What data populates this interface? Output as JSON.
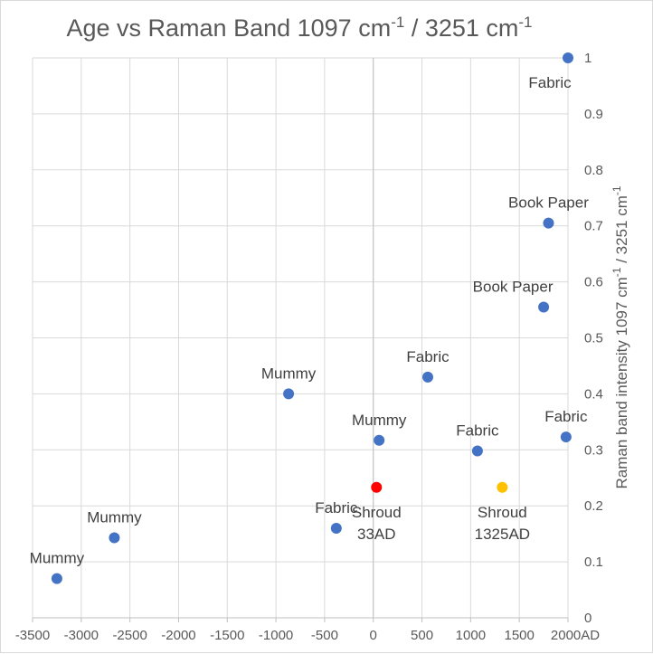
{
  "chart_data": {
    "type": "scatter",
    "title": {
      "main": "Age vs Raman Band 1097 cm",
      "sup1": "-1",
      "mid": " / 3251 cm",
      "sup2": "-1"
    },
    "xlabel": "",
    "ylabel": {
      "main": "Raman band intensity 1097 cm",
      "sup1": "-1",
      "mid": " / 3251 cm",
      "sup2": "-1"
    },
    "xlim": [
      -3500,
      2000
    ],
    "ylim": [
      0,
      1
    ],
    "x_ticks": [
      "-3500",
      "-3000",
      "-2500",
      "-2000",
      "-1500",
      "-1000",
      "-500",
      "0",
      "500",
      "1000",
      "1500",
      "2000AD"
    ],
    "y_ticks": [
      "0",
      "0.1",
      "0.2",
      "0.3",
      "0.4",
      "0.5",
      "0.6",
      "0.7",
      "0.8",
      "0.9",
      "1"
    ],
    "grid": true,
    "colors": {
      "default": "#4472c4",
      "shroud_33": "#ff0000",
      "shroud_1325": "#ffc000"
    },
    "points": [
      {
        "x": 2000,
        "y": 1.0,
        "label": [
          "Fabric"
        ],
        "color": "#4472c4",
        "label_pos": "below"
      },
      {
        "x": 1800,
        "y": 0.705,
        "label": [
          "Book Paper"
        ],
        "color": "#4472c4",
        "label_pos": "above"
      },
      {
        "x": 1750,
        "y": 0.555,
        "label": [
          "Book Paper"
        ],
        "color": "#4472c4",
        "label_pos": "above-left"
      },
      {
        "x": 560,
        "y": 0.43,
        "label": [
          "Fabric"
        ],
        "color": "#4472c4",
        "label_pos": "above"
      },
      {
        "x": -870,
        "y": 0.4,
        "label": [
          "Mummy"
        ],
        "color": "#4472c4",
        "label_pos": "above"
      },
      {
        "x": 60,
        "y": 0.317,
        "label": [
          "Mummy"
        ],
        "color": "#4472c4",
        "label_pos": "above"
      },
      {
        "x": 1980,
        "y": 0.323,
        "label": [
          "Fabric"
        ],
        "color": "#4472c4",
        "label_pos": "above"
      },
      {
        "x": 1070,
        "y": 0.298,
        "label": [
          "Fabric"
        ],
        "color": "#4472c4",
        "label_pos": "above"
      },
      {
        "x": 33,
        "y": 0.233,
        "label": [
          "Shroud",
          "33AD"
        ],
        "color": "#ff0000",
        "label_pos": "below"
      },
      {
        "x": 1325,
        "y": 0.233,
        "label": [
          "Shroud",
          "1325AD"
        ],
        "color": "#ffc000",
        "label_pos": "below"
      },
      {
        "x": -380,
        "y": 0.16,
        "label": [
          "Fabric"
        ],
        "color": "#4472c4",
        "label_pos": "above"
      },
      {
        "x": -2660,
        "y": 0.143,
        "label": [
          "Mummy"
        ],
        "color": "#4472c4",
        "label_pos": "above"
      },
      {
        "x": -3250,
        "y": 0.07,
        "label": [
          "Mummy"
        ],
        "color": "#4472c4",
        "label_pos": "above"
      }
    ]
  }
}
